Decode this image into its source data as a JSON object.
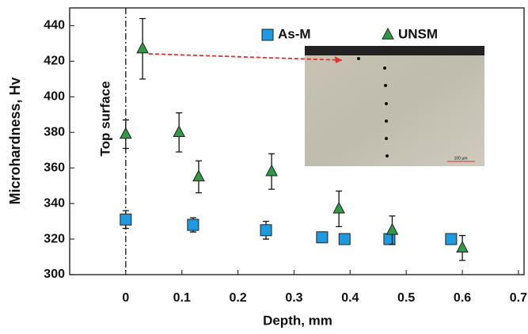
{
  "chart_data": {
    "type": "scatter",
    "x_label": "Depth, mm",
    "y_label": "Microhardness, Hv",
    "annotation": "Top surface",
    "inset_scale_label": "100 µm",
    "xlim": [
      -0.1,
      0.71
    ],
    "ylim": [
      300,
      450
    ],
    "xticks": [
      0,
      0.1,
      0.2,
      0.3,
      0.4,
      0.5,
      0.6,
      0.7
    ],
    "yticks": [
      300,
      320,
      340,
      360,
      380,
      400,
      420,
      440
    ],
    "legend": "top",
    "series": [
      {
        "name": "As-M",
        "color": "#1e9be0",
        "marker": "square",
        "x": [
          0,
          0.12,
          0.25,
          0.35,
          0.39,
          0.47,
          0.58
        ],
        "values": [
          331,
          328,
          325,
          321,
          320,
          320,
          320
        ],
        "errors": [
          5,
          4,
          5,
          2,
          2,
          2,
          1
        ]
      },
      {
        "name": "UNSM",
        "color": "#2e9a44",
        "marker": "triangle",
        "x": [
          0,
          0.03,
          0.095,
          0.13,
          0.26,
          0.38,
          0.475,
          0.6
        ],
        "values": [
          379,
          427,
          380,
          355,
          358,
          337,
          325,
          315
        ],
        "errors": [
          8,
          17,
          11,
          9,
          10,
          10,
          8,
          7
        ]
      }
    ]
  }
}
